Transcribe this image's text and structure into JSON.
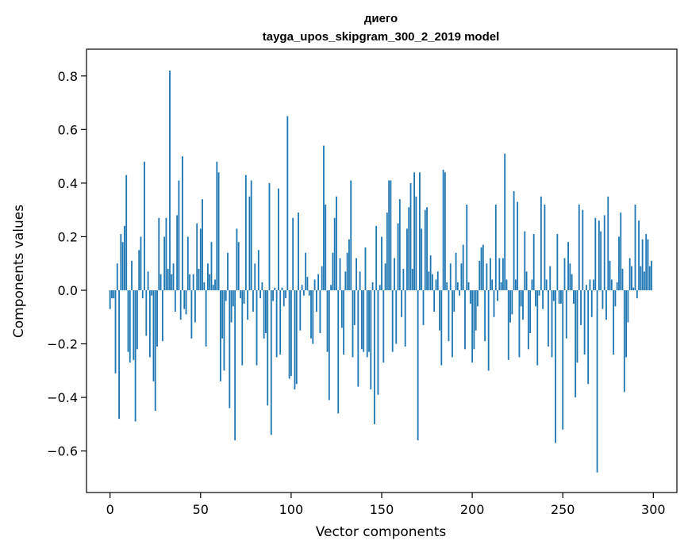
{
  "chart_data": {
    "type": "bar",
    "title": "диего",
    "subtitle": "tayga_upos_skipgram_300_2_2019 model",
    "xlabel": "Vector components",
    "ylabel": "Components values",
    "xlim": [
      -13,
      313
    ],
    "ylim": [
      -0.755,
      0.9
    ],
    "xticks": [
      0,
      50,
      100,
      150,
      200,
      250,
      300
    ],
    "xtick_labels": [
      "0",
      "50",
      "100",
      "150",
      "200",
      "250",
      "300"
    ],
    "yticks": [
      -0.6,
      -0.4,
      -0.2,
      0.0,
      0.2,
      0.4,
      0.6,
      0.8
    ],
    "ytick_labels": [
      "−0.6",
      "−0.4",
      "−0.2",
      "0.0",
      "0.2",
      "0.4",
      "0.6",
      "0.8"
    ],
    "grid": false,
    "bar_color": "#1f77b4",
    "values": [
      -0.07,
      -0.03,
      -0.03,
      -0.31,
      0.1,
      -0.48,
      0.21,
      0.18,
      0.24,
      0.43,
      -0.23,
      -0.27,
      0.11,
      -0.26,
      -0.49,
      -0.22,
      0.15,
      0.2,
      -0.03,
      0.48,
      -0.17,
      0.07,
      -0.25,
      -0.02,
      -0.34,
      -0.45,
      -0.21,
      0.27,
      0.06,
      -0.19,
      0.2,
      0.27,
      0.08,
      0.82,
      0.06,
      0.1,
      -0.08,
      0.28,
      0.41,
      -0.11,
      0.5,
      -0.07,
      -0.09,
      0.2,
      0.06,
      -0.18,
      0.06,
      -0.12,
      0.25,
      0.08,
      0.23,
      0.34,
      0.03,
      -0.21,
      0.1,
      0.06,
      0.18,
      0.02,
      0.04,
      0.48,
      0.44,
      -0.34,
      -0.18,
      -0.3,
      -0.04,
      0.14,
      -0.44,
      -0.12,
      -0.06,
      -0.56,
      0.23,
      0.18,
      -0.03,
      -0.28,
      -0.05,
      0.43,
      -0.11,
      0.35,
      0.41,
      -0.08,
      0.1,
      -0.28,
      0.15,
      -0.03,
      0.03,
      -0.18,
      -0.16,
      -0.43,
      0.4,
      -0.54,
      -0.04,
      0.01,
      -0.25,
      0.38,
      -0.24,
      0.01,
      -0.06,
      -0.03,
      0.65,
      -0.33,
      -0.32,
      0.27,
      -0.37,
      -0.35,
      0.29,
      -0.15,
      0.02,
      -0.02,
      0.14,
      0.05,
      -0.02,
      -0.18,
      -0.2,
      0.04,
      -0.08,
      0.06,
      -0.16,
      0.09,
      0.54,
      0.32,
      -0.23,
      -0.41,
      0.02,
      0.14,
      0.27,
      0.35,
      -0.46,
      0.12,
      -0.14,
      -0.24,
      0.07,
      0.14,
      0.19,
      0.41,
      -0.25,
      -0.13,
      0.12,
      -0.36,
      0.07,
      -0.22,
      -0.23,
      0.16,
      -0.25,
      -0.23,
      -0.37,
      0.03,
      -0.5,
      0.24,
      -0.39,
      0.02,
      0.2,
      -0.27,
      0.1,
      0.29,
      0.41,
      0.41,
      -0.23,
      0.12,
      -0.2,
      0.25,
      0.34,
      -0.1,
      0.08,
      -0.21,
      0.23,
      0.31,
      0.4,
      0.08,
      0.44,
      0.35,
      -0.56,
      0.44,
      0.23,
      -0.13,
      0.3,
      0.31,
      0.07,
      0.13,
      0.06,
      -0.08,
      0.04,
      0.07,
      -0.15,
      -0.28,
      0.45,
      0.44,
      0.03,
      -0.19,
      0.1,
      -0.25,
      -0.08,
      0.14,
      0.03,
      -0.02,
      0.1,
      0.17,
      -0.22,
      0.32,
      0.03,
      -0.05,
      -0.27,
      -0.22,
      -0.15,
      -0.06,
      0.11,
      0.16,
      0.17,
      -0.19,
      0.1,
      -0.3,
      0.12,
      0.04,
      -0.1,
      0.32,
      -0.04,
      0.12,
      0.03,
      0.12,
      0.51,
      0.04,
      -0.26,
      -0.12,
      -0.09,
      0.37,
      0.04,
      0.33,
      -0.25,
      -0.06,
      -0.11,
      0.22,
      0.07,
      -0.22,
      -0.16,
      0.04,
      0.21,
      -0.06,
      -0.28,
      -0.02,
      0.35,
      -0.07,
      0.32,
      0.04,
      -0.21,
      0.09,
      -0.25,
      -0.04,
      -0.57,
      0.21,
      -0.05,
      -0.05,
      -0.52,
      0.12,
      -0.18,
      0.18,
      0.1,
      0.06,
      -0.05,
      -0.4,
      -0.27,
      0.32,
      -0.13,
      0.3,
      -0.24,
      0.02,
      -0.35,
      0.04,
      -0.1,
      0.04,
      0.27,
      -0.68,
      0.26,
      0.22,
      -0.07,
      0.28,
      -0.11,
      0.35,
      0.11,
      0.04,
      -0.24,
      -0.06,
      0.03,
      0.2,
      0.29,
      0.08,
      -0.38,
      -0.25,
      -0.12,
      0.12,
      0.09,
      0.01,
      0.32,
      -0.03,
      0.26,
      0.09,
      0.19,
      0.07,
      0.21,
      0.19,
      0.09,
      0.11
    ]
  }
}
